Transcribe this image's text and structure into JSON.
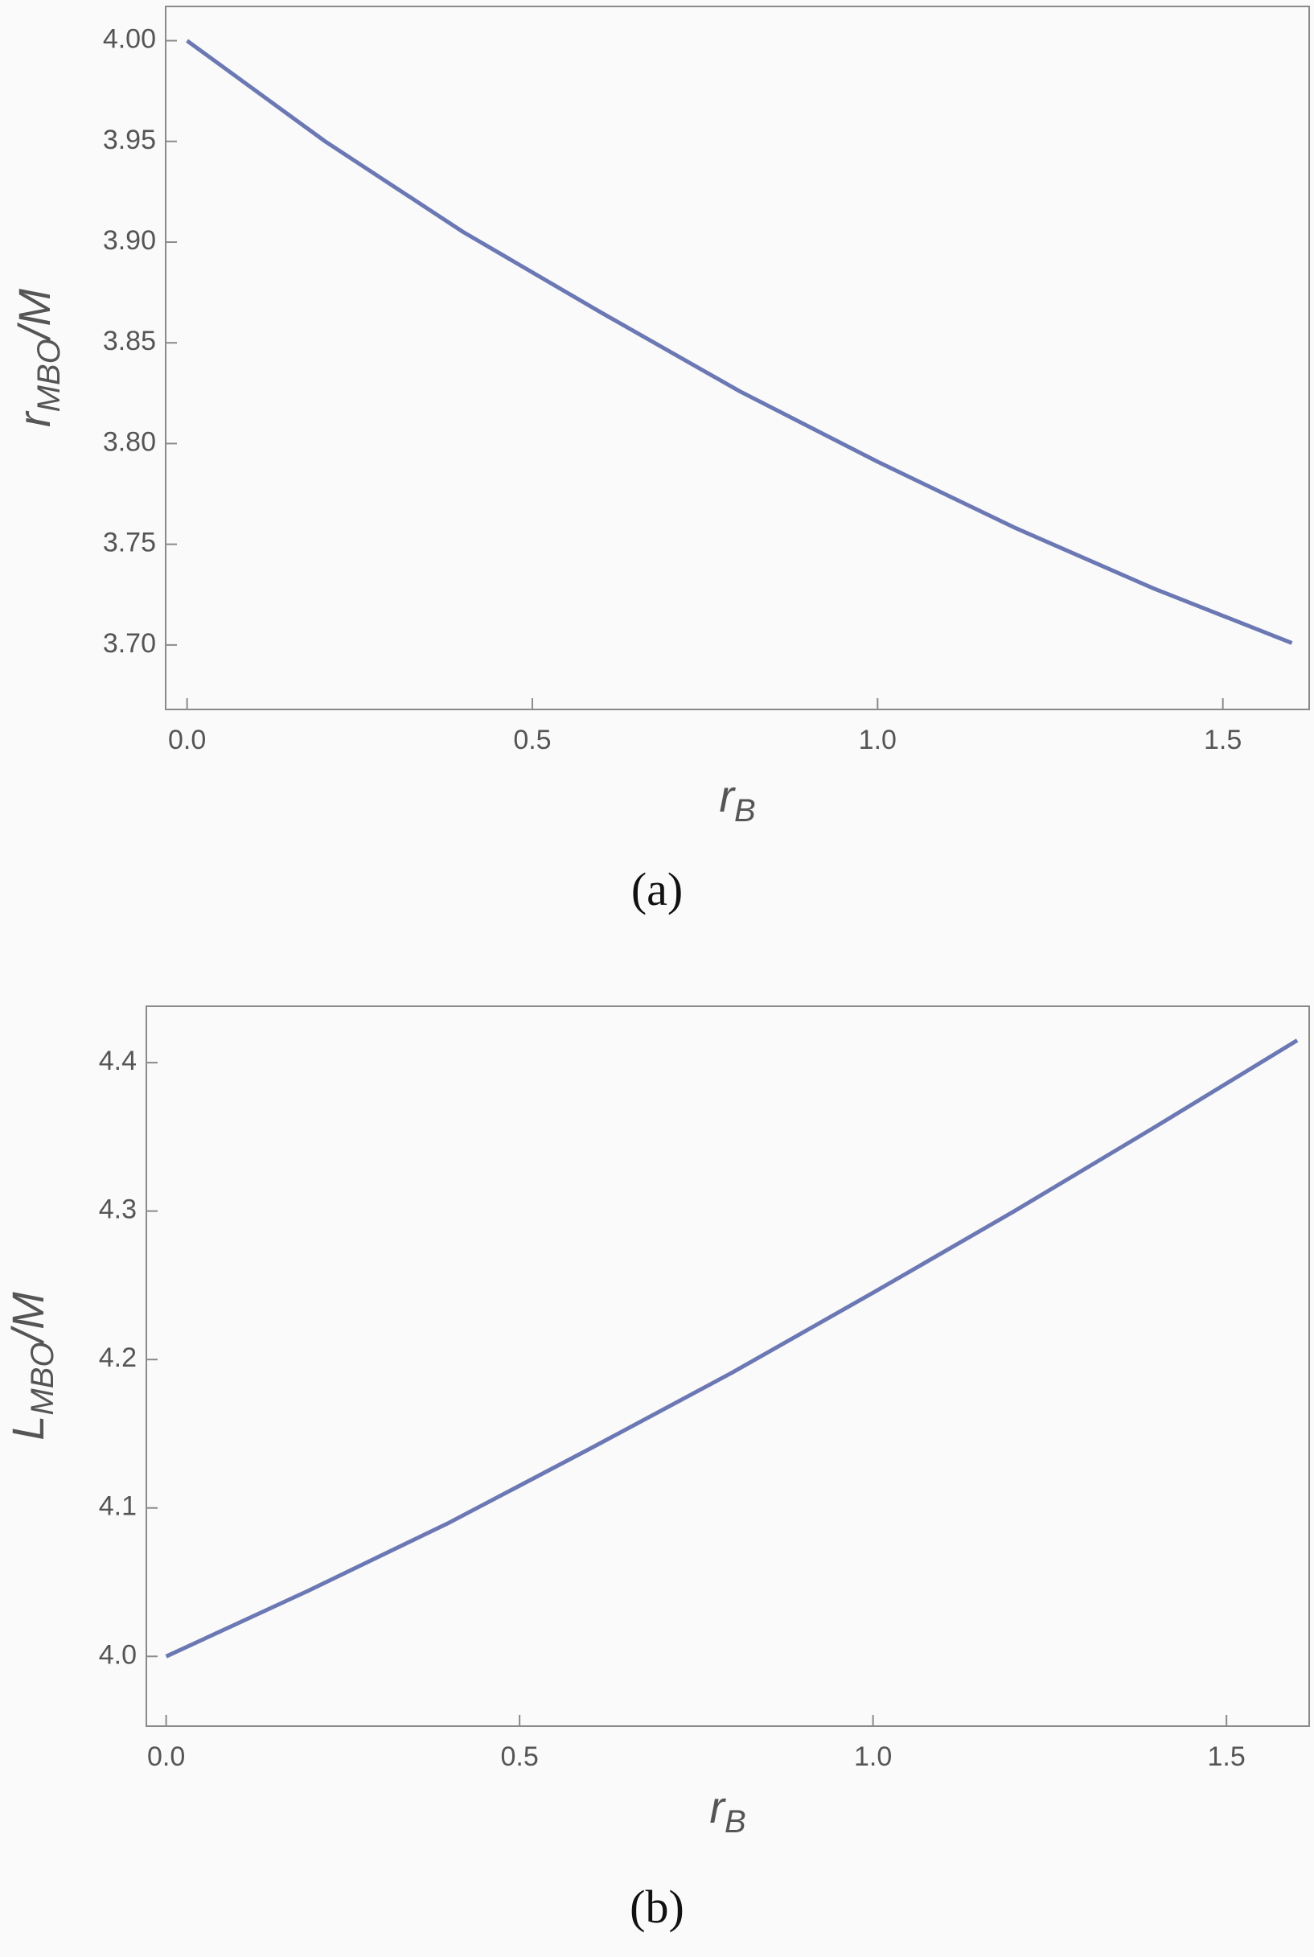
{
  "chart_data": [
    {
      "type": "line",
      "caption": "(a)",
      "xlabel": {
        "base": "r",
        "sub": "B"
      },
      "ylabel": {
        "base": "r",
        "sub": "MBO",
        "rest": "/M"
      },
      "x": [
        0,
        0.2,
        0.4,
        0.6,
        0.8,
        1.0,
        1.2,
        1.4,
        1.6
      ],
      "series": [
        {
          "color": "#6b78b4",
          "values": [
            4.0,
            3.95,
            3.905,
            3.865,
            3.826,
            3.791,
            3.758,
            3.728,
            3.701
          ]
        }
      ],
      "xlim": [
        -0.031,
        1.625
      ],
      "ylim": [
        3.668,
        4.017
      ],
      "xticks": [
        {
          "value": 0,
          "label": "0.0"
        },
        {
          "value": 0.5,
          "label": "0.5"
        },
        {
          "value": 1.0,
          "label": "1.0"
        },
        {
          "value": 1.5,
          "label": "1.5"
        }
      ],
      "yticks": [
        {
          "value": 3.7,
          "label": "3.70"
        },
        {
          "value": 3.75,
          "label": "3.75"
        },
        {
          "value": 3.8,
          "label": "3.80"
        },
        {
          "value": 3.85,
          "label": "3.85"
        },
        {
          "value": 3.9,
          "label": "3.90"
        },
        {
          "value": 3.95,
          "label": "3.95"
        },
        {
          "value": 4.0,
          "label": "4.00"
        }
      ],
      "grid": false
    },
    {
      "type": "line",
      "caption": "(b)",
      "xlabel": {
        "base": "r",
        "sub": "B"
      },
      "ylabel": {
        "base": "L",
        "sub": "MBO",
        "rest": "/M"
      },
      "x": [
        0,
        0.2,
        0.4,
        0.6,
        0.8,
        1.0,
        1.2,
        1.4,
        1.6
      ],
      "series": [
        {
          "color": "#6b78b4",
          "values": [
            4.0,
            4.044,
            4.09,
            4.14,
            4.191,
            4.245,
            4.3,
            4.357,
            4.415
          ]
        }
      ],
      "xlim": [
        -0.028,
        1.617
      ],
      "ylim": [
        3.953,
        4.438
      ],
      "xticks": [
        {
          "value": 0,
          "label": "0.0"
        },
        {
          "value": 0.5,
          "label": "0.5"
        },
        {
          "value": 1.0,
          "label": "1.0"
        },
        {
          "value": 1.5,
          "label": "1.5"
        }
      ],
      "yticks": [
        {
          "value": 4.0,
          "label": "4.0"
        },
        {
          "value": 4.1,
          "label": "4.1"
        },
        {
          "value": 4.2,
          "label": "4.2"
        },
        {
          "value": 4.3,
          "label": "4.3"
        },
        {
          "value": 4.4,
          "label": "4.4"
        }
      ],
      "grid": false
    }
  ]
}
